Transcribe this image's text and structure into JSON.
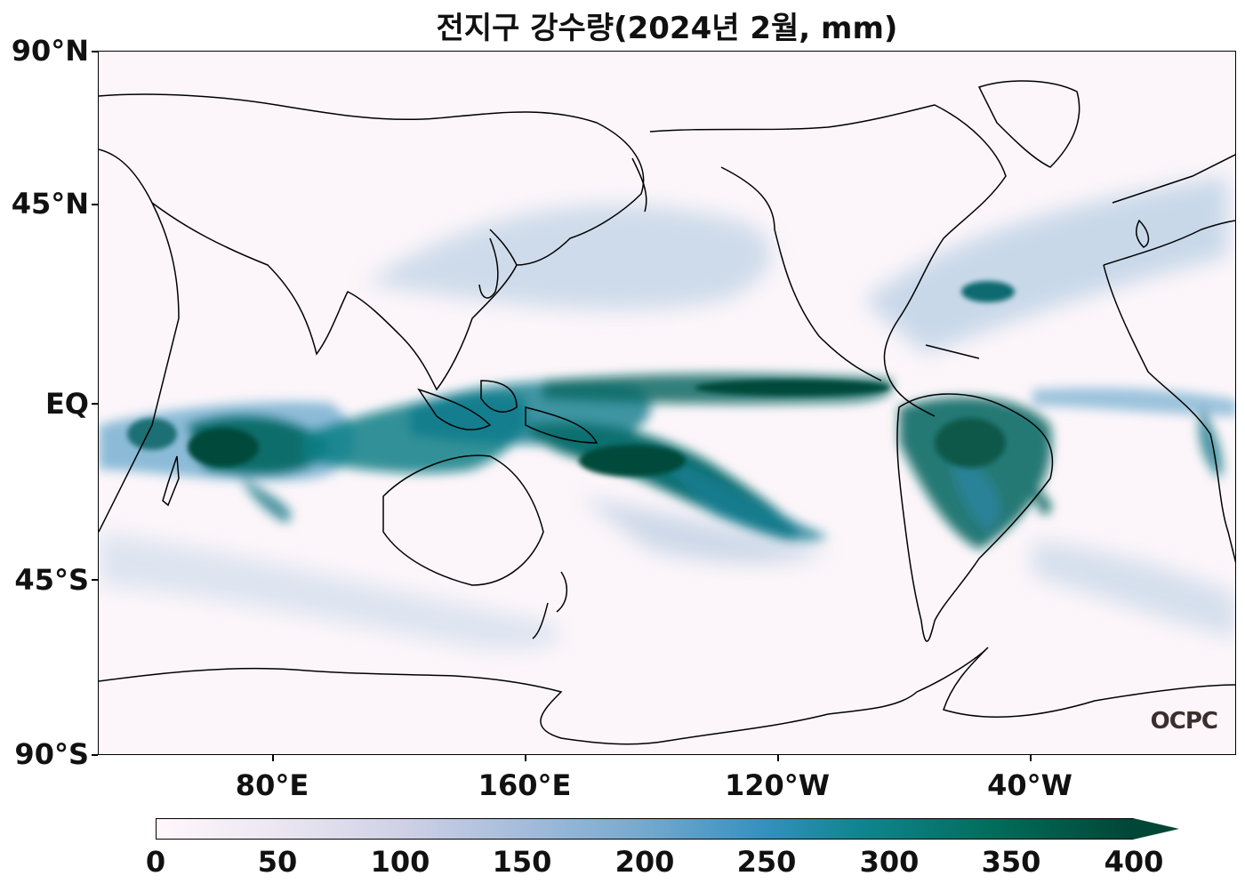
{
  "title": "전지구 강수량(2024년 2월, mm)",
  "y_axis": {
    "labels": [
      "90°N",
      "45°N",
      "EQ",
      "45°S",
      "90°S"
    ]
  },
  "x_axis": {
    "labels": [
      "80°E",
      "160°E",
      "120°W",
      "40°W"
    ]
  },
  "colorbar": {
    "labels": [
      "0",
      "50",
      "100",
      "150",
      "200",
      "250",
      "300",
      "350",
      "400"
    ],
    "range": [
      0,
      400
    ],
    "extend": "max",
    "colormap": [
      "#fff7fb",
      "#ece7f2",
      "#d0d1e6",
      "#a6bddb",
      "#74a9cf",
      "#3690c0",
      "#02818a",
      "#016c59",
      "#014636"
    ]
  },
  "logo": "OCPC",
  "map": {
    "projection": "equirectangular, centered on Pacific",
    "lon_range": [
      25,
      385
    ],
    "lat_range": [
      -90,
      90
    ]
  }
}
